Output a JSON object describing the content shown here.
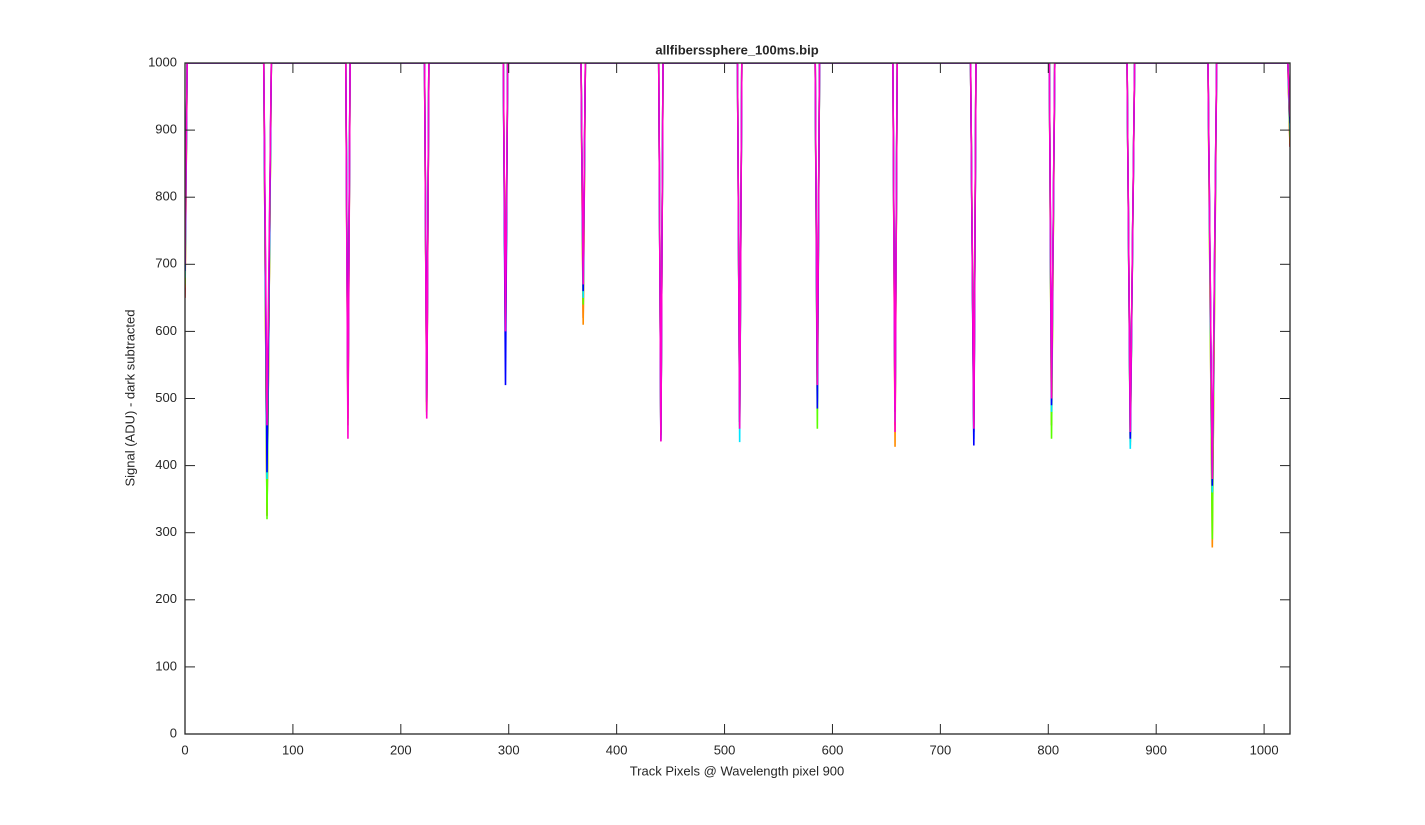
{
  "chart_data": {
    "type": "line",
    "title": "allfiberssphere_100ms.bip",
    "x_label": "Track Pixels @ Wavelength pixel 900",
    "y_label": "Signal (ADU) - dark subtracted",
    "x": [
      0,
      2,
      73,
      76,
      80,
      149,
      151,
      153,
      222,
      224,
      226,
      295,
      297,
      299,
      367,
      369,
      371,
      439,
      441,
      443,
      512,
      514,
      516,
      584,
      586,
      588,
      656,
      658,
      660,
      728,
      731,
      733,
      801,
      803,
      806,
      873,
      876,
      880,
      948,
      952,
      956,
      1022,
      1024
    ],
    "series": [
      {
        "name": "red",
        "color": "#ff0000",
        "values": [
          650,
          1000,
          1000,
          325,
          1000,
          1000,
          470,
          1000,
          1000,
          480,
          1000,
          1000,
          580,
          1000,
          1000,
          620,
          1000,
          1000,
          445,
          1000,
          1000,
          460,
          1000,
          1000,
          500,
          1000,
          1000,
          460,
          1000,
          1000,
          450,
          1000,
          1000,
          460,
          1000,
          1000,
          440,
          1000,
          1000,
          345,
          1000,
          1000,
          875
        ]
      },
      {
        "name": "orange",
        "color": "#ff8c00",
        "values": [
          665,
          1000,
          1000,
          330,
          1000,
          1000,
          480,
          1000,
          1000,
          490,
          1000,
          1000,
          590,
          1000,
          1000,
          610,
          1000,
          1000,
          450,
          1000,
          1000,
          470,
          1000,
          1000,
          510,
          1000,
          1000,
          428,
          1000,
          1000,
          460,
          1000,
          1000,
          470,
          1000,
          1000,
          430,
          1000,
          1000,
          278,
          1000,
          1000,
          880
        ]
      },
      {
        "name": "green",
        "color": "#5aff00",
        "values": [
          670,
          1000,
          1000,
          320,
          1000,
          1000,
          460,
          1000,
          1000,
          475,
          1000,
          1000,
          570,
          1000,
          1000,
          640,
          1000,
          1000,
          448,
          1000,
          1000,
          455,
          1000,
          1000,
          455,
          1000,
          1000,
          470,
          1000,
          1000,
          470,
          1000,
          1000,
          440,
          1000,
          1000,
          435,
          1000,
          1000,
          290,
          1000,
          1000,
          890
        ]
      },
      {
        "name": "cyan",
        "color": "#00e5ff",
        "values": [
          680,
          1000,
          1000,
          380,
          1000,
          1000,
          500,
          1000,
          1000,
          500,
          1000,
          1000,
          560,
          1000,
          1000,
          650,
          1000,
          1000,
          440,
          1000,
          1000,
          435,
          1000,
          1000,
          495,
          1000,
          1000,
          465,
          1000,
          1000,
          440,
          1000,
          1000,
          480,
          1000,
          1000,
          425,
          1000,
          1000,
          360,
          1000,
          1000,
          900
        ]
      },
      {
        "name": "blue",
        "color": "#0000ff",
        "values": [
          690,
          1000,
          1000,
          390,
          1000,
          1000,
          490,
          1000,
          1000,
          495,
          1000,
          1000,
          520,
          1000,
          1000,
          660,
          1000,
          1000,
          437,
          1000,
          1000,
          465,
          1000,
          1000,
          485,
          1000,
          1000,
          480,
          1000,
          1000,
          430,
          1000,
          1000,
          490,
          1000,
          1000,
          440,
          1000,
          1000,
          370,
          1000,
          1000,
          910
        ]
      },
      {
        "name": "magenta",
        "color": "#ff00cc",
        "values": [
          700,
          1000,
          1000,
          460,
          1000,
          1000,
          440,
          1000,
          1000,
          470,
          1000,
          1000,
          600,
          1000,
          1000,
          670,
          1000,
          1000,
          436,
          1000,
          1000,
          455,
          1000,
          1000,
          520,
          1000,
          1000,
          450,
          1000,
          1000,
          455,
          1000,
          1000,
          500,
          1000,
          1000,
          450,
          1000,
          1000,
          380,
          1000,
          1000,
          920
        ]
      }
    ],
    "xlim": [
      0,
      1024
    ],
    "ylim": [
      0,
      1000
    ],
    "xticks": [
      0,
      100,
      200,
      300,
      400,
      500,
      600,
      700,
      800,
      900,
      1000
    ],
    "yticks": [
      0,
      100,
      200,
      300,
      400,
      500,
      600,
      700,
      800,
      900,
      1000
    ],
    "grid": false
  }
}
